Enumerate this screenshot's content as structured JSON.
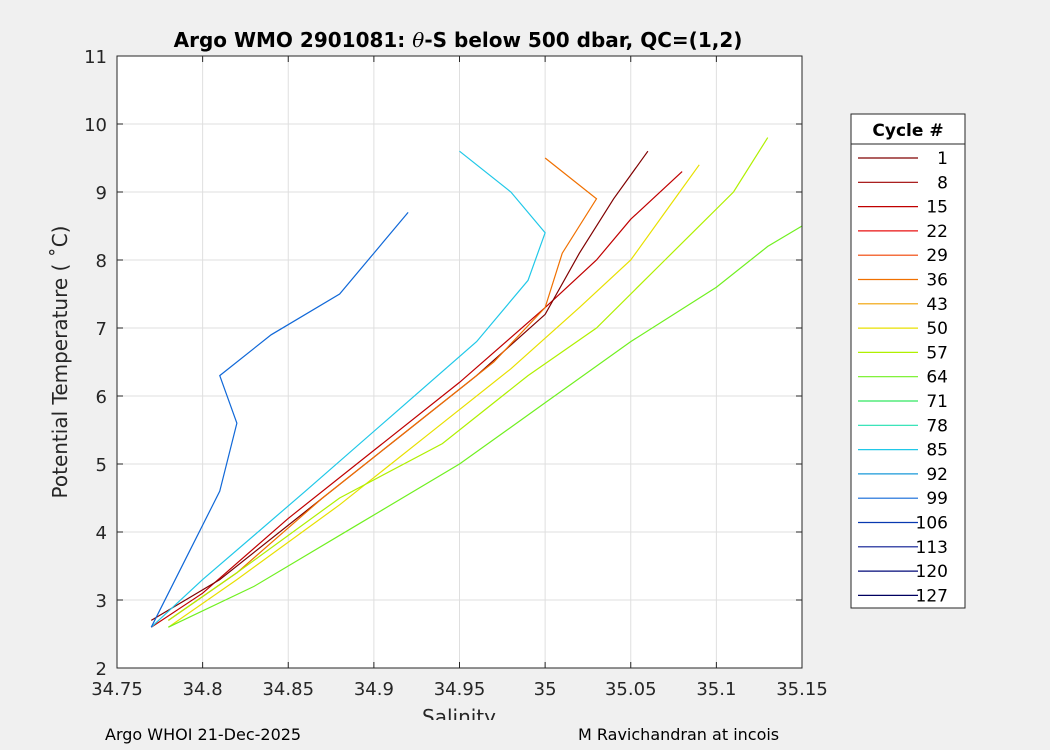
{
  "chart_data": {
    "type": "line",
    "title_prefix": "Argo WMO 2901081: ",
    "title_theta": "θ",
    "title_suffix": "-S below 500 dbar,  QC=(1,2)",
    "xlabel": "Salinity",
    "ylabel": "Potential Temperature ( ˚C)",
    "xlim": [
      34.75,
      35.15
    ],
    "ylim": [
      2,
      11
    ],
    "xticks": [
      34.75,
      34.8,
      34.85,
      34.9,
      34.95,
      35,
      35.05,
      35.1,
      35.15
    ],
    "xtick_labels": [
      "34.75",
      "34.8",
      "34.85",
      "34.9",
      "34.95",
      "35",
      "35.05",
      "35.1",
      "35.15"
    ],
    "yticks": [
      2,
      3,
      4,
      5,
      6,
      7,
      8,
      9,
      10,
      11
    ],
    "ytick_labels": [
      "2",
      "3",
      "4",
      "5",
      "6",
      "7",
      "8",
      "9",
      "10",
      "11"
    ],
    "grid": true,
    "legend_title": "Cycle #",
    "legend_position": "right-outside",
    "legend": [
      {
        "label": "1",
        "color": "#800000"
      },
      {
        "label": "8",
        "color": "#9e0000"
      },
      {
        "label": "15",
        "color": "#c00000"
      },
      {
        "label": "22",
        "color": "#e81010"
      },
      {
        "label": "29",
        "color": "#f04000"
      },
      {
        "label": "36",
        "color": "#f07000"
      },
      {
        "label": "43",
        "color": "#f0a000"
      },
      {
        "label": "50",
        "color": "#e8e000"
      },
      {
        "label": "57",
        "color": "#b0f000"
      },
      {
        "label": "64",
        "color": "#70f020"
      },
      {
        "label": "71",
        "color": "#30e860"
      },
      {
        "label": "78",
        "color": "#20e0b0"
      },
      {
        "label": "85",
        "color": "#20c8e8"
      },
      {
        "label": "92",
        "color": "#1898d8"
      },
      {
        "label": "99",
        "color": "#1068d8"
      },
      {
        "label": "106",
        "color": "#0838b0"
      },
      {
        "label": "113",
        "color": "#081890"
      },
      {
        "label": "120",
        "color": "#000878"
      },
      {
        "label": "127",
        "color": "#000060"
      }
    ],
    "series_note": "one theta-S profile per cycle colored by cycle number",
    "series": [
      {
        "name": "red profile",
        "color": "#c00000",
        "x": [
          34.77,
          34.8,
          34.85,
          34.9,
          34.95,
          35.0,
          35.03,
          35.05,
          35.08
        ],
        "y": [
          2.6,
          3.1,
          4.2,
          5.2,
          6.2,
          7.3,
          8.0,
          8.6,
          9.3
        ]
      },
      {
        "name": "dark red profile",
        "color": "#800000",
        "x": [
          34.77,
          34.81,
          34.86,
          34.91,
          34.96,
          35.0,
          35.02,
          35.04,
          35.06
        ],
        "y": [
          2.7,
          3.3,
          4.3,
          5.3,
          6.3,
          7.2,
          8.1,
          8.9,
          9.6
        ]
      },
      {
        "name": "orange profile",
        "color": "#f07000",
        "x": [
          34.78,
          34.82,
          34.87,
          34.92,
          34.97,
          35.0,
          35.01,
          35.03,
          35.0
        ],
        "y": [
          2.7,
          3.4,
          4.5,
          5.5,
          6.5,
          7.3,
          8.1,
          8.9,
          9.5
        ]
      },
      {
        "name": "yellow profile",
        "color": "#e8e000",
        "x": [
          34.78,
          34.82,
          34.88,
          34.93,
          34.98,
          35.02,
          35.05,
          35.07,
          35.09
        ],
        "y": [
          2.6,
          3.3,
          4.4,
          5.4,
          6.4,
          7.3,
          8.0,
          8.7,
          9.4
        ]
      },
      {
        "name": "green profile",
        "color": "#70f020",
        "x": [
          34.78,
          34.83,
          34.89,
          34.95,
          35.0,
          35.05,
          35.1,
          35.13,
          35.15
        ],
        "y": [
          2.6,
          3.2,
          4.1,
          5.0,
          5.9,
          6.8,
          7.6,
          8.2,
          8.5
        ]
      },
      {
        "name": "light green profile",
        "color": "#b0f000",
        "x": [
          34.78,
          34.82,
          34.88,
          34.94,
          34.99,
          35.03,
          35.07,
          35.11,
          35.13
        ],
        "y": [
          2.7,
          3.4,
          4.5,
          5.3,
          6.3,
          7.0,
          8.0,
          9.0,
          9.8
        ]
      },
      {
        "name": "cyan profile",
        "color": "#20c8e8",
        "x": [
          34.77,
          34.8,
          34.86,
          34.91,
          34.96,
          34.99,
          35.0,
          34.98,
          34.95
        ],
        "y": [
          2.6,
          3.3,
          4.6,
          5.7,
          6.8,
          7.7,
          8.4,
          9.0,
          9.6
        ]
      },
      {
        "name": "blue profile",
        "color": "#1068d8",
        "x": [
          34.77,
          34.79,
          34.81,
          34.82,
          34.81,
          34.84,
          34.88,
          34.9,
          34.92
        ],
        "y": [
          2.6,
          3.6,
          4.6,
          5.6,
          6.3,
          6.9,
          7.5,
          8.1,
          8.7
        ]
      }
    ]
  },
  "footer": {
    "left": "Argo WHOI 21-Dec-2025",
    "right": "M Ravichandran at incois"
  }
}
